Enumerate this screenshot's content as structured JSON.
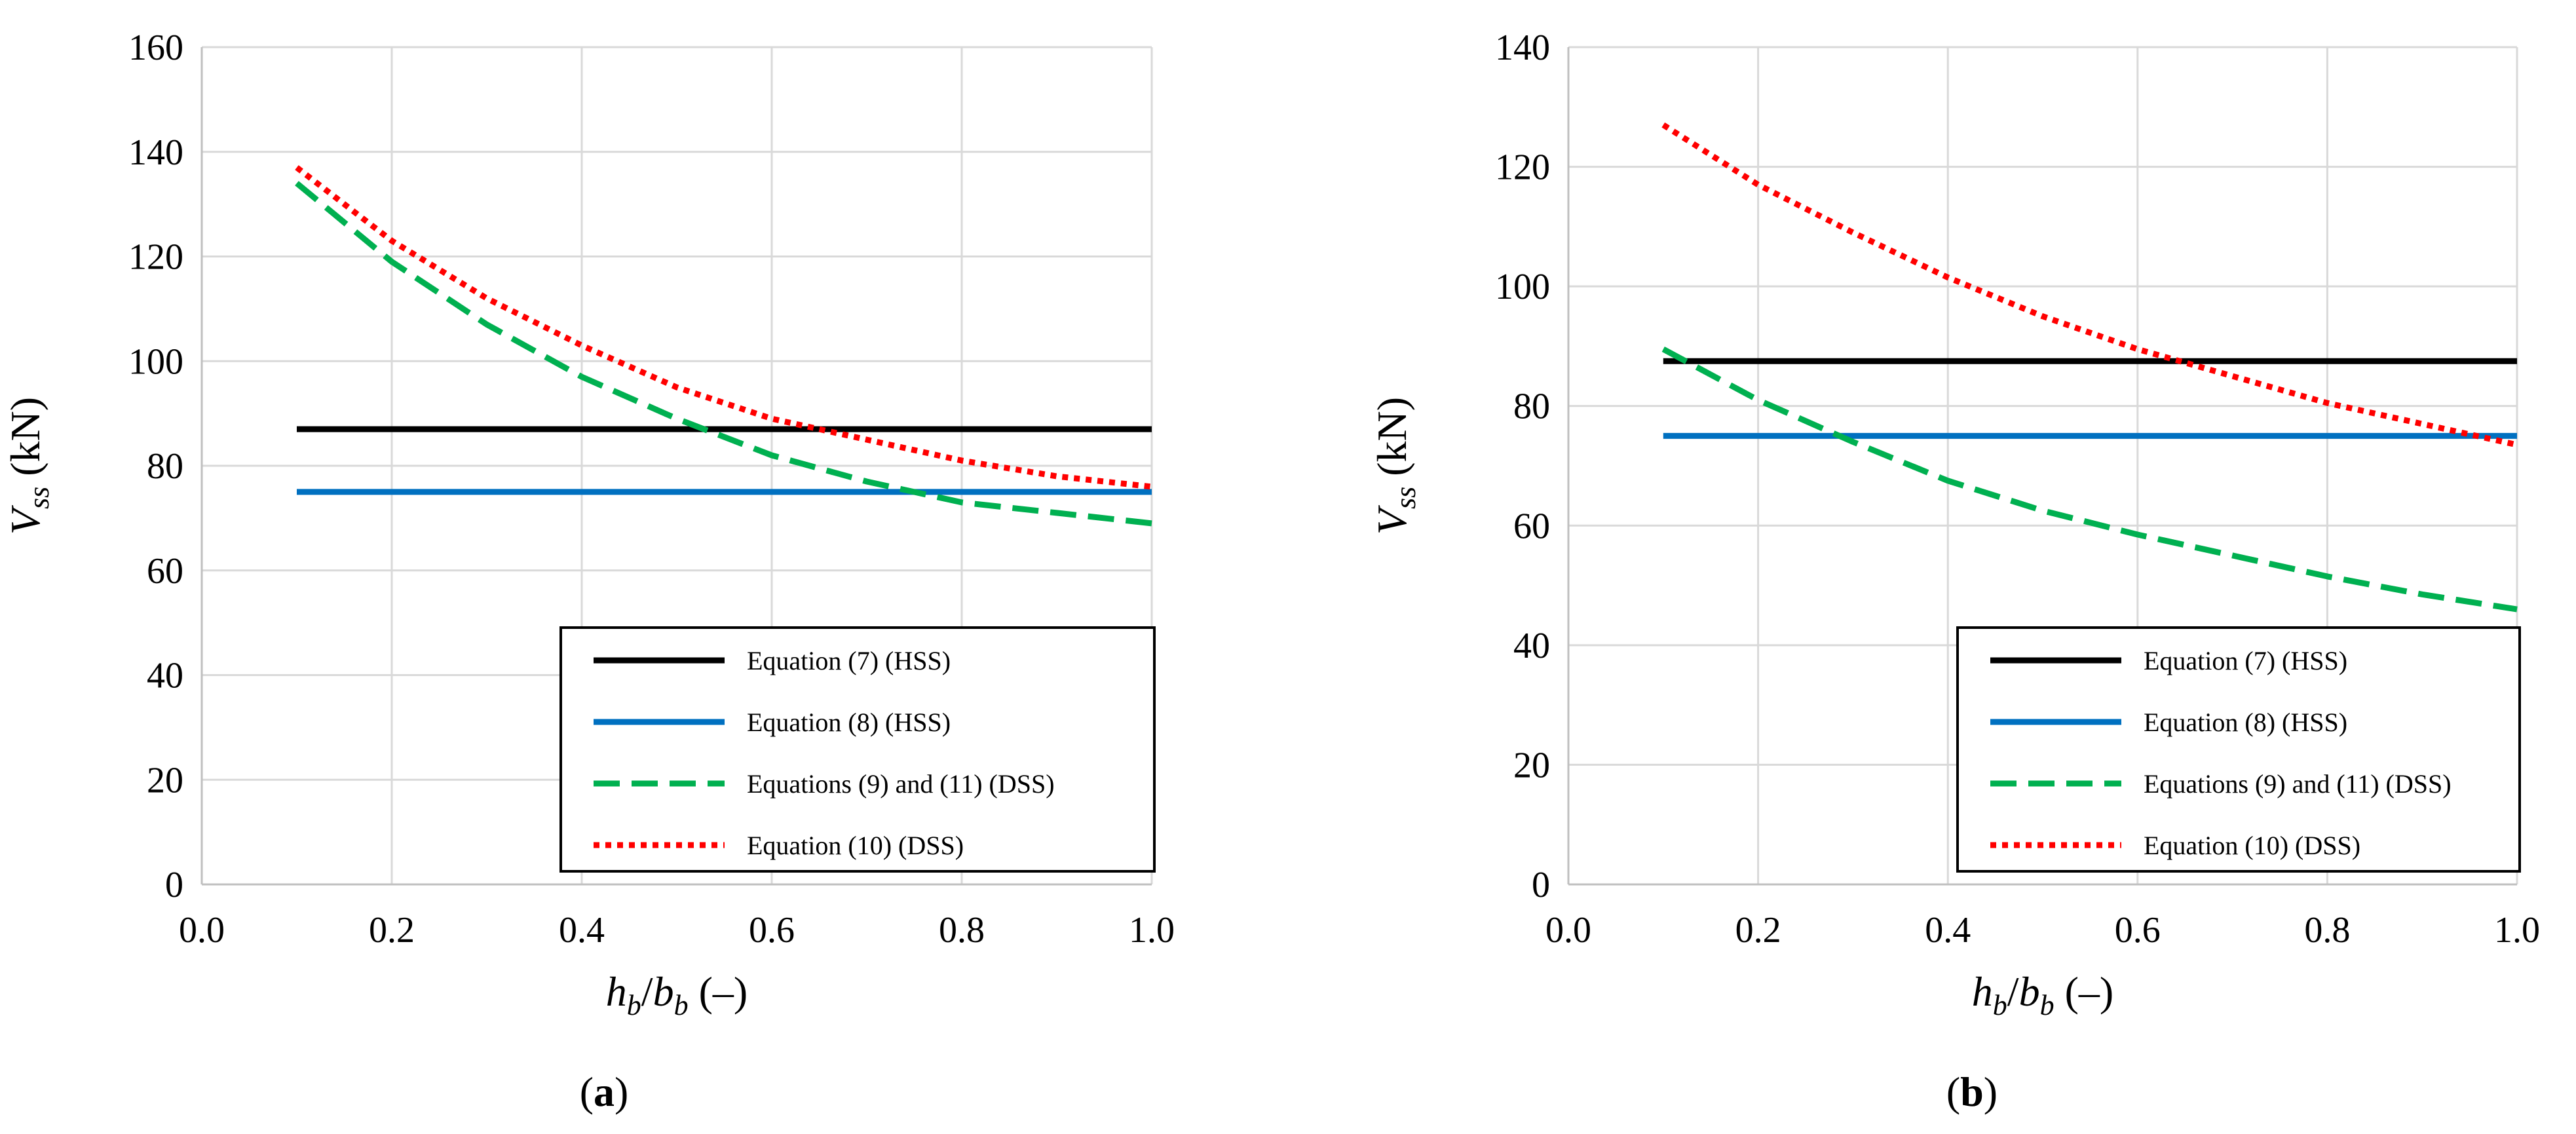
{
  "chart_data": [
    {
      "type": "line",
      "panel_label": "a",
      "xlabel": "h_b/b_b (–)",
      "ylabel": "V_ss (kN)",
      "xlim": [
        0.0,
        1.0
      ],
      "ylim": [
        0,
        160
      ],
      "xticks": [
        "0.0",
        "0.2",
        "0.4",
        "0.6",
        "0.8",
        "1.0"
      ],
      "yticks": [
        "0",
        "20",
        "40",
        "60",
        "80",
        "100",
        "120",
        "140",
        "160"
      ],
      "grid": true,
      "legend_position": "bottom-right",
      "x": [
        0.1,
        0.2,
        0.3,
        0.4,
        0.5,
        0.6,
        0.7,
        0.8,
        0.9,
        1.0
      ],
      "series": [
        {
          "name": "Equation (7) (HSS)",
          "color": "#000000",
          "style": "solid",
          "values": [
            87,
            87,
            87,
            87,
            87,
            87,
            87,
            87,
            87,
            87
          ]
        },
        {
          "name": "Equation (8) (HSS)",
          "color": "#0070c0",
          "style": "solid",
          "values": [
            75,
            75,
            75,
            75,
            75,
            75,
            75,
            75,
            75,
            75
          ]
        },
        {
          "name": "Equations (9) and (11) (DSS)",
          "color": "#00b050",
          "style": "dashed",
          "values": [
            134,
            119,
            107,
            97,
            89,
            82,
            77,
            73,
            71,
            69
          ]
        },
        {
          "name": "Equation (10) (DSS)",
          "color": "#ff0000",
          "style": "dotted",
          "values": [
            137,
            123,
            112,
            103,
            95,
            89,
            85,
            81,
            78,
            76
          ]
        }
      ]
    },
    {
      "type": "line",
      "panel_label": "b",
      "xlabel": "h_b/b_b (–)",
      "ylabel": "V_ss (kN)",
      "xlim": [
        0.0,
        1.0
      ],
      "ylim": [
        0,
        140
      ],
      "xticks": [
        "0.0",
        "0.2",
        "0.4",
        "0.6",
        "0.8",
        "1.0"
      ],
      "yticks": [
        "0",
        "20",
        "40",
        "60",
        "80",
        "100",
        "120",
        "140"
      ],
      "grid": true,
      "legend_position": "bottom-right",
      "x": [
        0.1,
        0.2,
        0.3,
        0.4,
        0.5,
        0.6,
        0.7,
        0.8,
        0.9,
        1.0
      ],
      "series": [
        {
          "name": "Equation (7) (HSS)",
          "color": "#000000",
          "style": "solid",
          "values": [
            87.5,
            87.5,
            87.5,
            87.5,
            87.5,
            87.5,
            87.5,
            87.5,
            87.5,
            87.5
          ]
        },
        {
          "name": "Equation (8) (HSS)",
          "color": "#0070c0",
          "style": "solid",
          "values": [
            75,
            75,
            75,
            75,
            75,
            75,
            75,
            75,
            75,
            75
          ]
        },
        {
          "name": "Equations (9) and (11) (DSS)",
          "color": "#00b050",
          "style": "dashed",
          "values": [
            89.5,
            81,
            74,
            67.5,
            62.5,
            58.5,
            55,
            51.5,
            48.5,
            46
          ]
        },
        {
          "name": "Equation (10) (DSS)",
          "color": "#ff0000",
          "style": "dotted",
          "values": [
            127,
            117,
            109,
            101.5,
            95,
            89.5,
            85,
            80.5,
            77,
            73.5
          ]
        }
      ]
    }
  ]
}
